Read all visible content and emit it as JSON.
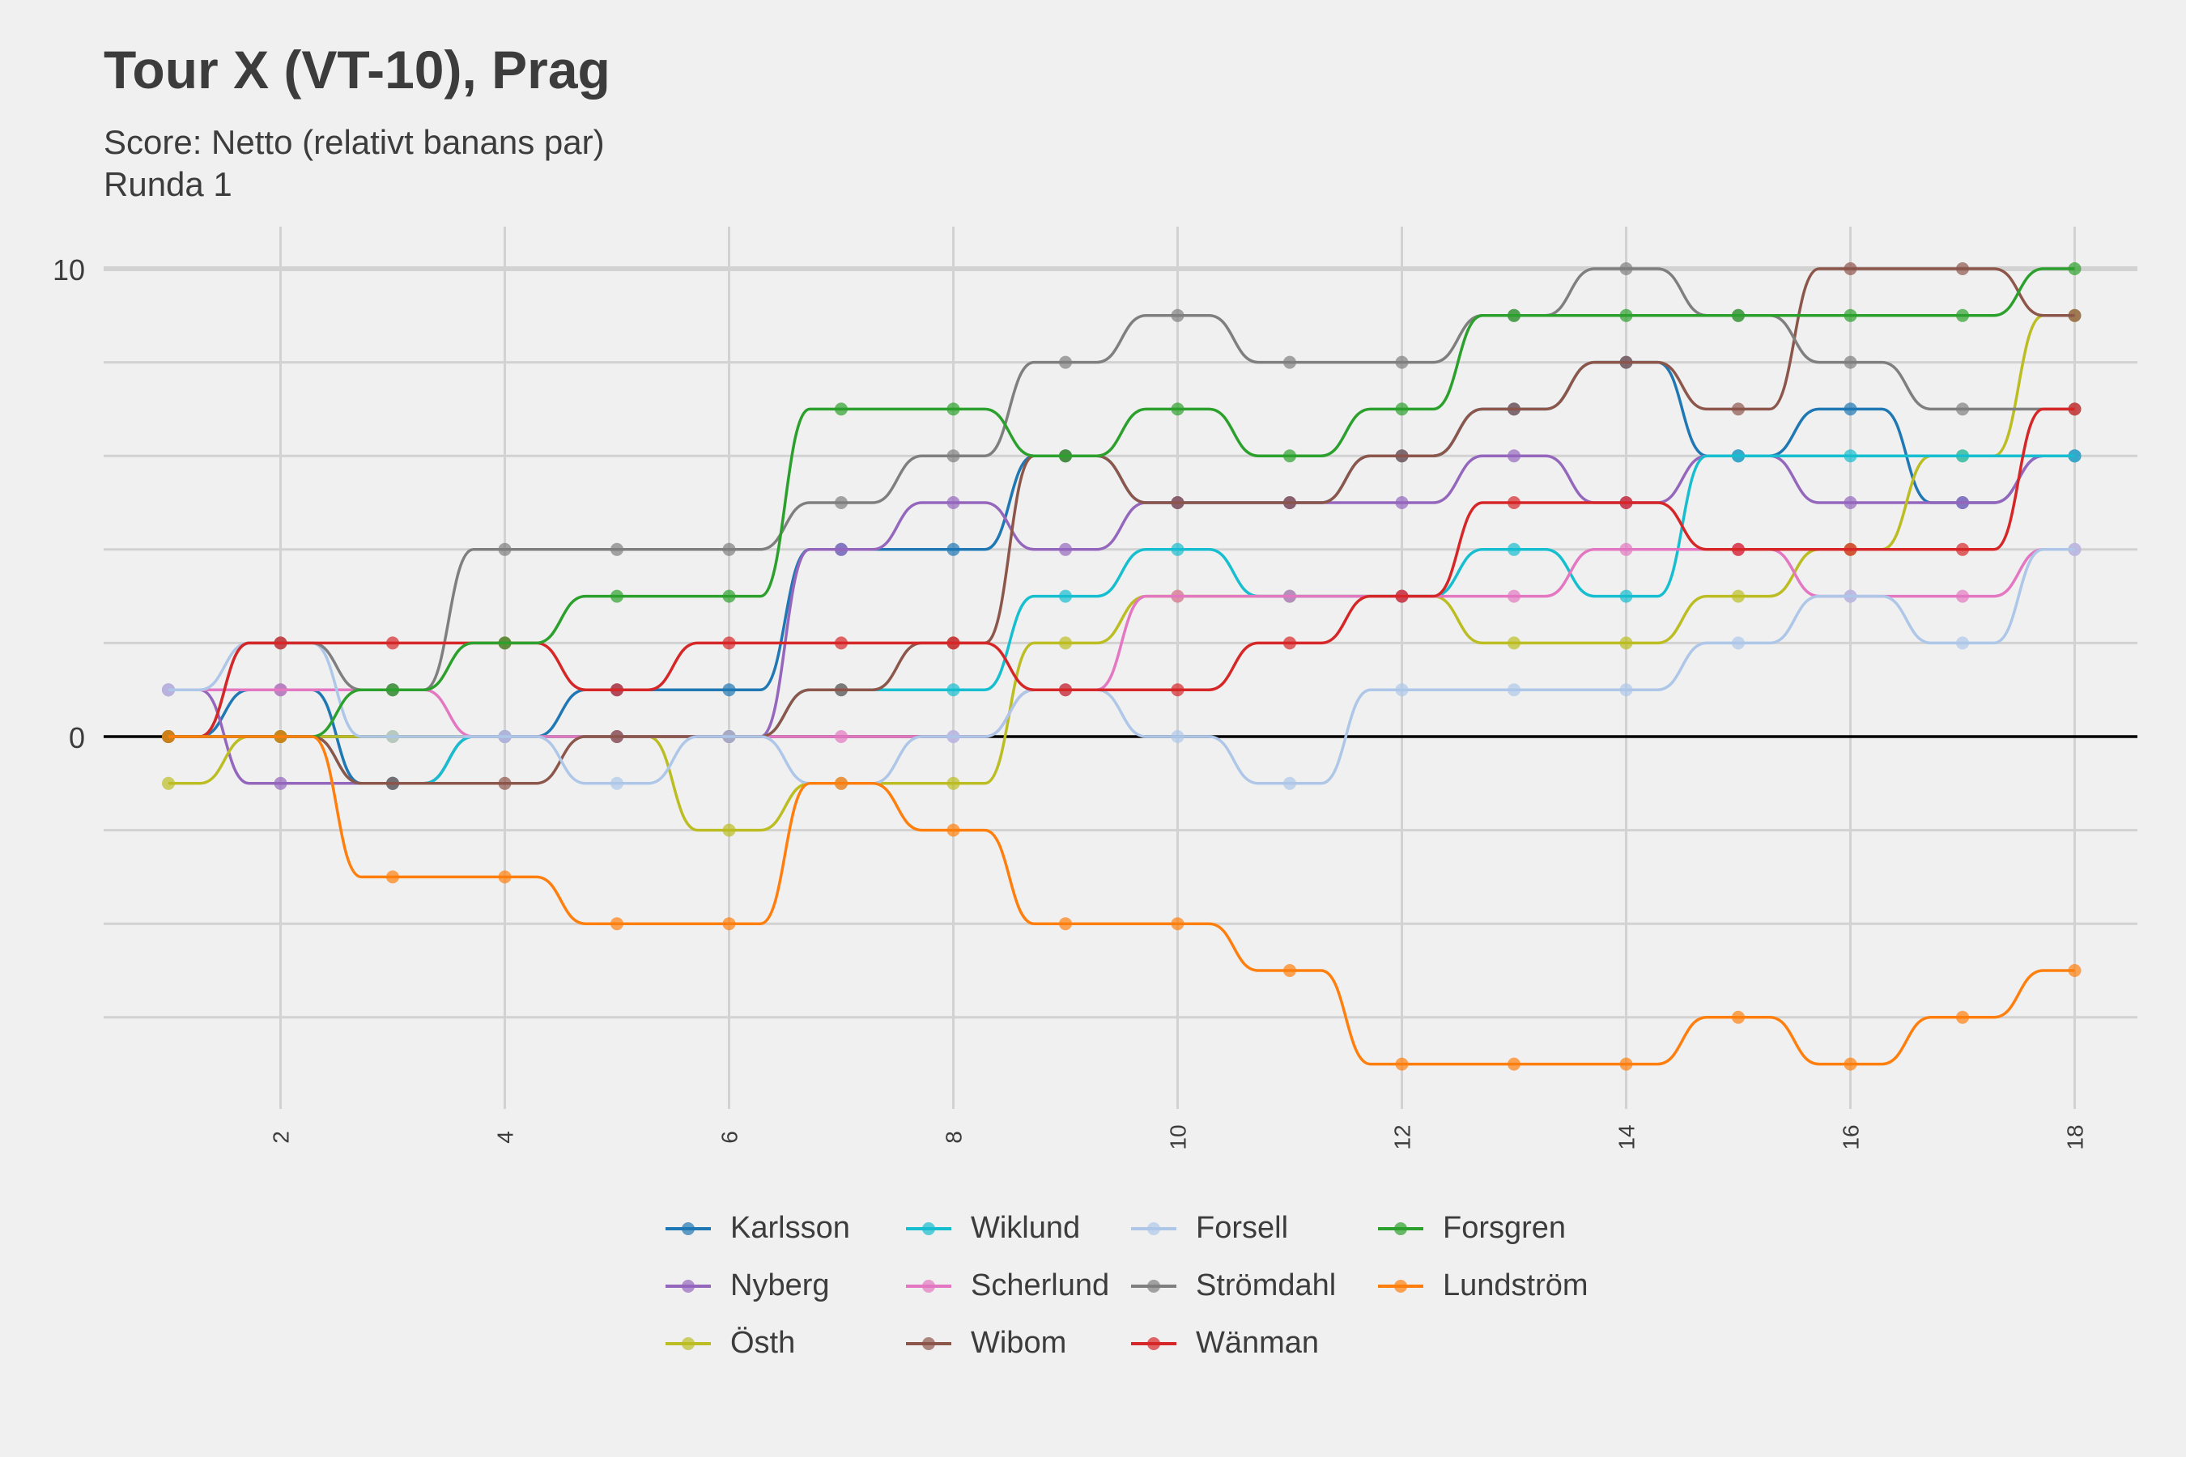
{
  "title": "Tour X (VT-10), Prag",
  "subtitle_line1": "Score: Netto (relativt banans par)",
  "subtitle_line2": "Runda 1",
  "chart_data": {
    "type": "line",
    "x": [
      1,
      2,
      3,
      4,
      5,
      6,
      7,
      8,
      9,
      10,
      11,
      12,
      13,
      14,
      15,
      16,
      17,
      18
    ],
    "xticks": [
      2,
      4,
      6,
      8,
      10,
      12,
      14,
      16,
      18
    ],
    "yticks": [
      0,
      10
    ],
    "xlim": [
      0,
      19.5
    ],
    "ylim": [
      -8,
      10.5
    ],
    "grid": true,
    "legend_position": "bottom",
    "series": [
      {
        "name": "Karlsson",
        "color": "#1f77b4",
        "values": [
          0,
          1,
          -1,
          0,
          1,
          1,
          4,
          4,
          6,
          5,
          5,
          6,
          7,
          8,
          6,
          7,
          5,
          6
        ]
      },
      {
        "name": "Nyberg",
        "color": "#9467bd",
        "values": [
          1,
          -1,
          -1,
          0,
          0,
          0,
          4,
          5,
          4,
          5,
          5,
          5,
          6,
          5,
          6,
          5,
          5,
          6
        ]
      },
      {
        "name": "Östh",
        "color": "#bcbd22",
        "values": [
          -1,
          0,
          0,
          0,
          0,
          -2,
          -1,
          -1,
          2,
          3,
          3,
          3,
          2,
          2,
          3,
          4,
          6,
          9
        ]
      },
      {
        "name": "Wiklund",
        "color": "#17becf",
        "values": [
          0,
          0,
          -1,
          0,
          0,
          0,
          1,
          1,
          3,
          4,
          3,
          3,
          4,
          3,
          6,
          6,
          6,
          6
        ]
      },
      {
        "name": "Scherlund",
        "color": "#e377c2",
        "values": [
          1,
          1,
          1,
          0,
          0,
          0,
          0,
          0,
          1,
          3,
          3,
          3,
          3,
          4,
          4,
          3,
          3,
          4
        ]
      },
      {
        "name": "Wibom",
        "color": "#8c564b",
        "values": [
          0,
          0,
          -1,
          -1,
          0,
          0,
          1,
          2,
          6,
          5,
          5,
          6,
          7,
          8,
          7,
          10,
          10,
          9
        ]
      },
      {
        "name": "Forsell",
        "color": "#aec7e8",
        "values": [
          1,
          2,
          0,
          0,
          -1,
          0,
          -1,
          0,
          1,
          0,
          -1,
          1,
          1,
          1,
          2,
          3,
          2,
          4
        ]
      },
      {
        "name": "Strömdahl",
        "color": "#7f7f7f",
        "values": [
          0,
          2,
          1,
          4,
          4,
          4,
          5,
          6,
          8,
          9,
          8,
          8,
          9,
          10,
          9,
          8,
          7,
          7
        ]
      },
      {
        "name": "Wänman",
        "color": "#d62728",
        "values": [
          0,
          2,
          2,
          2,
          1,
          2,
          2,
          2,
          1,
          1,
          2,
          3,
          5,
          5,
          4,
          4,
          4,
          7
        ]
      },
      {
        "name": "Forsgren",
        "color": "#2ca02c",
        "values": [
          0,
          0,
          1,
          2,
          3,
          3,
          7,
          7,
          6,
          7,
          6,
          7,
          9,
          9,
          9,
          9,
          9,
          10
        ]
      },
      {
        "name": "Lundström",
        "color": "#ff7f0e",
        "values": [
          0,
          0,
          -3,
          -3,
          -4,
          -4,
          -1,
          -2,
          -4,
          -4,
          -5,
          -7,
          -7,
          -7,
          -6,
          -7,
          -6,
          -5
        ]
      }
    ]
  }
}
